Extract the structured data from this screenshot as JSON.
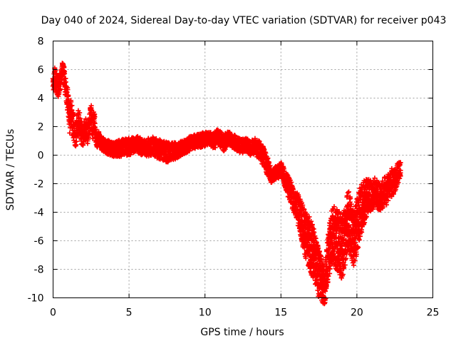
{
  "chart_data": {
    "type": "scatter",
    "title": "Day 040 of 2024, Sidereal Day-to-day VTEC variation (SDTVAR) for receiver p043",
    "xlabel": "GPS time / hours",
    "ylabel": "SDTVAR / TECUs",
    "xlim": [
      0,
      25
    ],
    "ylim": [
      -10,
      8
    ],
    "x_ticks": [
      0,
      5,
      10,
      15,
      20,
      25
    ],
    "y_ticks": [
      -10,
      -8,
      -6,
      -4,
      -2,
      0,
      2,
      4,
      6,
      8
    ],
    "grid": true,
    "marker": "+",
    "color": "#ff0000",
    "series": [
      {
        "name": "SDTVAR",
        "profile_x": [
          0.0,
          0.1,
          0.2,
          0.35,
          0.5,
          0.6,
          0.7,
          0.8,
          0.9,
          1.0,
          1.1,
          1.2,
          1.35,
          1.5,
          1.65,
          1.8,
          1.95,
          2.1,
          2.25,
          2.4,
          2.5,
          2.6,
          2.7,
          2.8,
          2.9,
          3.0,
          3.2,
          3.5,
          4.0,
          4.5,
          5.0,
          5.5,
          6.0,
          6.5,
          7.0,
          7.5,
          8.0,
          8.5,
          9.0,
          9.5,
          10.0,
          10.3,
          10.6,
          10.9,
          11.2,
          11.5,
          11.8,
          12.1,
          12.4,
          12.7,
          13.0,
          13.3,
          13.6,
          13.8,
          14.0,
          14.2,
          14.4,
          15.0,
          15.2,
          15.4,
          15.6,
          15.8,
          16.0,
          16.2,
          16.4,
          16.6,
          16.8,
          17.0,
          17.2,
          17.4,
          17.6,
          17.8,
          17.9,
          18.0,
          18.2,
          18.4,
          18.6,
          18.8,
          19.0,
          19.2,
          19.4,
          19.6,
          19.8,
          20.0,
          20.2,
          20.4,
          20.6,
          20.8,
          21.0,
          21.2,
          21.4,
          21.6,
          21.8,
          22.0,
          22.2,
          22.4,
          22.6,
          22.8,
          22.9
        ],
        "profile_y": [
          5.0,
          5.5,
          5.0,
          4.8,
          5.3,
          6.0,
          6.0,
          4.8,
          4.2,
          3.5,
          2.5,
          3.0,
          2.0,
          1.5,
          2.5,
          1.8,
          1.3,
          2.0,
          1.5,
          2.2,
          2.8,
          1.8,
          2.5,
          1.5,
          1.0,
          1.2,
          0.8,
          0.6,
          0.4,
          0.5,
          0.6,
          0.8,
          0.5,
          0.6,
          0.4,
          0.2,
          0.3,
          0.5,
          0.8,
          1.0,
          1.1,
          1.2,
          1.0,
          1.3,
          0.8,
          1.2,
          1.0,
          0.8,
          0.6,
          0.7,
          0.5,
          0.6,
          0.3,
          0.0,
          -0.5,
          -1.0,
          -1.5,
          -1.0,
          -1.5,
          -2.0,
          -2.5,
          -3.0,
          -3.5,
          -4.0,
          -4.8,
          -5.5,
          -6.0,
          -6.5,
          -7.2,
          -8.0,
          -8.5,
          -9.0,
          -9.3,
          -8.0,
          -6.5,
          -5.5,
          -5.8,
          -6.0,
          -6.5,
          -5.8,
          -4.5,
          -5.0,
          -6.0,
          -5.0,
          -4.0,
          -3.5,
          -3.0,
          -2.7,
          -3.0,
          -2.5,
          -2.8,
          -3.0,
          -2.5,
          -2.5,
          -2.0,
          -1.8,
          -1.5,
          -1.0,
          -0.5
        ],
        "profile_spread": [
          0.6,
          0.7,
          0.8,
          0.7,
          0.6,
          0.5,
          0.5,
          0.7,
          0.8,
          0.9,
          1.0,
          1.0,
          1.0,
          1.0,
          1.0,
          0.9,
          0.8,
          0.8,
          0.8,
          0.8,
          0.7,
          0.7,
          0.7,
          0.6,
          0.5,
          0.5,
          0.5,
          0.5,
          0.5,
          0.6,
          0.6,
          0.6,
          0.6,
          0.7,
          0.7,
          0.7,
          0.6,
          0.5,
          0.5,
          0.5,
          0.5,
          0.5,
          0.6,
          0.6,
          0.6,
          0.5,
          0.5,
          0.5,
          0.5,
          0.5,
          0.5,
          0.6,
          0.7,
          0.7,
          0.7,
          0.6,
          0.5,
          0.5,
          0.6,
          0.7,
          0.8,
          0.9,
          1.0,
          1.2,
          1.4,
          1.6,
          1.8,
          1.9,
          1.9,
          1.8,
          1.6,
          1.4,
          1.2,
          1.4,
          1.8,
          2.0,
          2.2,
          2.2,
          2.2,
          2.2,
          2.2,
          2.0,
          1.9,
          1.9,
          1.8,
          1.6,
          1.4,
          1.2,
          1.0,
          1.0,
          1.0,
          1.0,
          1.0,
          1.0,
          1.0,
          1.0,
          0.8,
          0.8,
          0.8
        ]
      }
    ]
  }
}
